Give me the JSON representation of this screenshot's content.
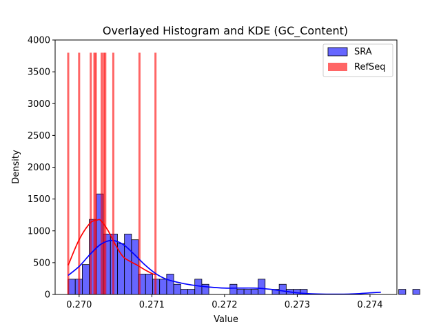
{
  "chart_data": {
    "type": "bar",
    "title": "Overlayed Histogram and KDE (GC_Content)",
    "xlabel": "Value",
    "ylabel": "Density",
    "xlim": [
      0.26967,
      0.27437
    ],
    "ylim": [
      0,
      4000
    ],
    "x_ticks": [
      0.27,
      0.271,
      0.272,
      0.273,
      0.274
    ],
    "x_tick_labels": [
      "0.270",
      "0.271",
      "0.272",
      "0.273",
      "0.274"
    ],
    "y_ticks": [
      0,
      500,
      1000,
      1500,
      2000,
      2500,
      3000,
      3500,
      4000
    ],
    "y_tick_labels": [
      "0",
      "500",
      "1000",
      "1500",
      "2000",
      "2500",
      "3000",
      "3500",
      "4000"
    ],
    "legend": {
      "position": "upper right"
    },
    "series": [
      {
        "name": "SRA",
        "kind": "histogram",
        "bin_width": 9.67e-05,
        "x_start": 0.26985,
        "values": [
          240,
          240,
          470,
          1180,
          1580,
          950,
          950,
          800,
          950,
          860,
          320,
          320,
          240,
          240,
          320,
          160,
          80,
          80,
          240,
          160,
          0,
          0,
          0,
          160,
          80,
          80,
          80,
          240,
          0,
          80,
          160,
          80,
          80,
          80,
          0,
          0,
          0,
          0,
          0,
          0,
          0,
          0,
          0,
          0,
          0,
          0,
          0,
          80,
          0,
          80
        ],
        "color": "#0000ff",
        "alpha": 0.6
      },
      {
        "name": "RefSeq",
        "kind": "histogram",
        "x": [
          0.26985,
          0.27,
          0.27016,
          0.27021,
          0.27023,
          0.27031,
          0.27034,
          0.27036,
          0.27047,
          0.27083,
          0.27105
        ],
        "height": 3800,
        "color": "#ff0000",
        "alpha": 0.6
      },
      {
        "name": "SRA KDE",
        "kind": "kde",
        "color": "#0000ff",
        "x": [
          0.26985,
          0.27,
          0.27015,
          0.2703,
          0.27045,
          0.2706,
          0.27075,
          0.2709,
          0.27105,
          0.2712,
          0.2714,
          0.2716,
          0.2718,
          0.272,
          0.2722,
          0.2724,
          0.2726,
          0.2728,
          0.273,
          0.2732,
          0.2734,
          0.2736,
          0.2738,
          0.274,
          0.27415
        ],
        "y": [
          300,
          440,
          630,
          790,
          850,
          790,
          640,
          470,
          330,
          240,
          180,
          140,
          115,
          100,
          100,
          100,
          85,
          55,
          25,
          10,
          5,
          5,
          10,
          25,
          35
        ]
      },
      {
        "name": "RefSeq KDE",
        "kind": "kde",
        "color": "#ff0000",
        "x": [
          0.26985,
          0.27,
          0.27015,
          0.27025,
          0.2703,
          0.2704,
          0.2705,
          0.2706,
          0.2707,
          0.2708,
          0.2709,
          0.271,
          0.27105
        ],
        "y": [
          460,
          860,
          1120,
          1170,
          1160,
          1000,
          780,
          600,
          520,
          460,
          390,
          330,
          310
        ]
      }
    ]
  }
}
